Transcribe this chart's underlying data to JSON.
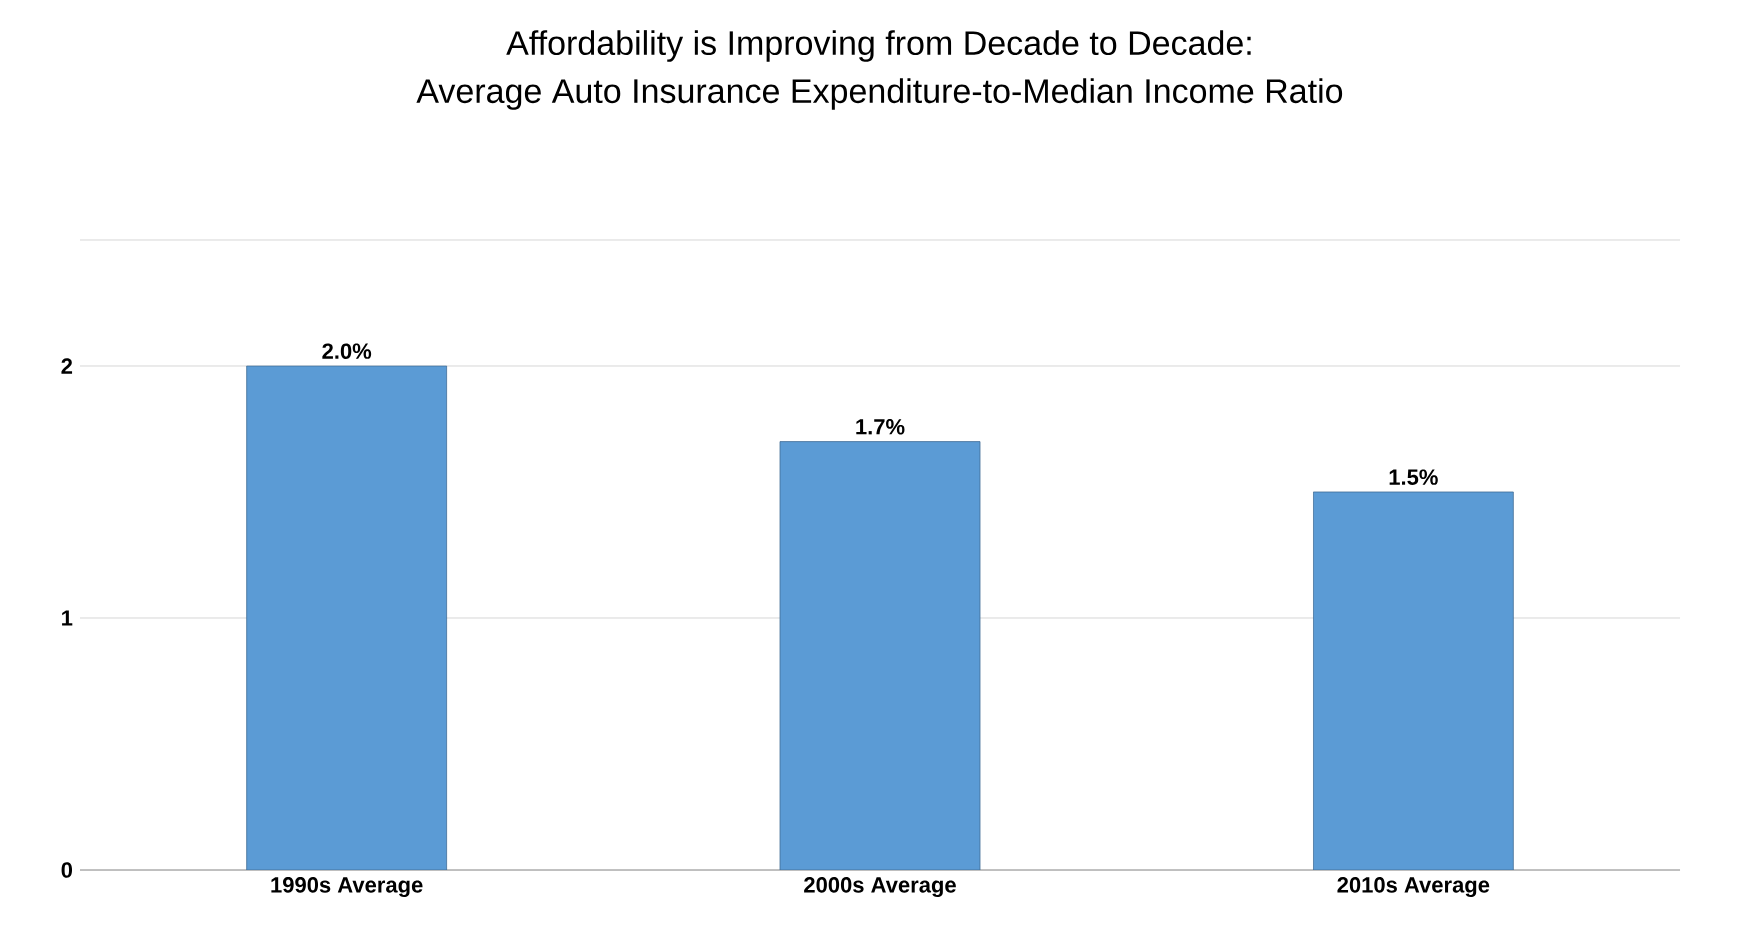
{
  "chart_data": {
    "type": "bar",
    "title": "Affordability is Improving from Decade to Decade:",
    "subtitle": "Average Auto Insurance Expenditure-to-Median Income Ratio",
    "categories": [
      "1990s Average",
      "2000s Average",
      "2010s Average"
    ],
    "values": [
      2.0,
      1.7,
      1.5
    ],
    "value_labels": [
      "2.0%",
      "1.7%",
      "1.5%"
    ],
    "color": "#5b9bd5",
    "ylim": [
      0,
      2.5
    ],
    "yticks": [
      0,
      1,
      2,
      {
        "value": 2.5,
        "label": null
      }
    ],
    "grid": "y"
  }
}
